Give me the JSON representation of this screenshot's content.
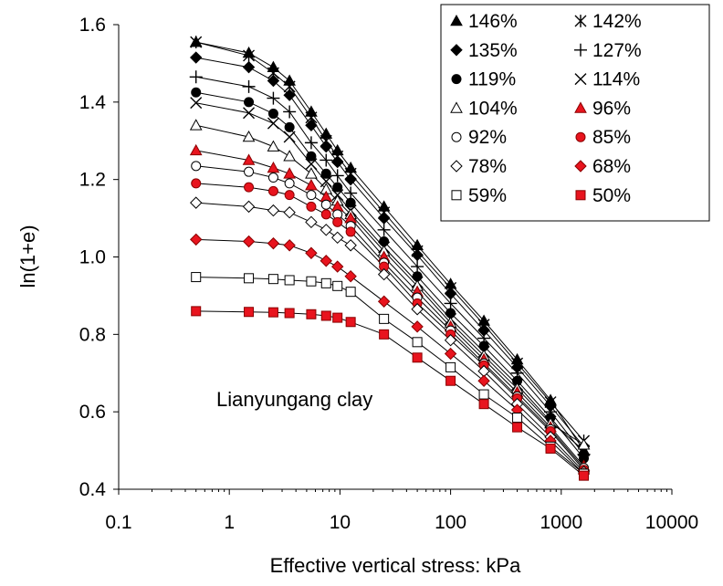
{
  "chart_data": {
    "type": "scatter",
    "xlabel": "Effective vertical stress: kPa",
    "ylabel": "ln(1+e)",
    "x_scale": "log",
    "xlim": [
      0.1,
      10000
    ],
    "ylim": [
      0.4,
      1.6
    ],
    "x_ticks": [
      0.1,
      1,
      10,
      100,
      1000,
      10000
    ],
    "x_tick_labels": [
      "0.1",
      "1",
      "10",
      "100",
      "1000",
      "10000"
    ],
    "y_ticks": [
      0.4,
      0.6,
      0.8,
      1.0,
      1.2,
      1.4,
      1.6
    ],
    "y_tick_labels": [
      "0.4",
      "0.6",
      "0.8",
      "1.0",
      "1.2",
      "1.4",
      "1.6"
    ],
    "grid": false,
    "legend_position": "top-right",
    "annotation": "Lianyungang clay",
    "x": [
      0.5,
      1.5,
      2.5,
      3.5,
      5.5,
      7.5,
      9.5,
      12.5,
      25,
      50,
      100,
      200,
      400,
      800,
      1600
    ],
    "series": [
      {
        "name": "146%",
        "marker": "triangle",
        "color": "#000000",
        "fill": "filled",
        "values": [
          1.555,
          1.527,
          1.49,
          1.455,
          1.375,
          1.318,
          1.275,
          1.23,
          1.13,
          1.03,
          0.93,
          0.835,
          0.735,
          0.63,
          0.5
        ]
      },
      {
        "name": "142%",
        "marker": "asterisk",
        "color": "#000000",
        "fill": "open",
        "values": [
          1.555,
          1.52,
          1.475,
          1.44,
          1.36,
          1.3,
          1.26,
          1.215,
          1.115,
          1.015,
          0.92,
          0.825,
          0.725,
          0.625,
          0.525
        ]
      },
      {
        "name": "135%",
        "marker": "diamond",
        "color": "#000000",
        "fill": "filled",
        "values": [
          1.515,
          1.49,
          1.455,
          1.418,
          1.34,
          1.285,
          1.245,
          1.2,
          1.1,
          1.005,
          0.905,
          0.81,
          0.715,
          0.615,
          0.51
        ]
      },
      {
        "name": "127%",
        "marker": "plus",
        "color": "#000000",
        "fill": "open",
        "values": [
          1.465,
          1.44,
          1.41,
          1.375,
          1.295,
          1.25,
          1.21,
          1.165,
          1.07,
          0.975,
          0.88,
          0.79,
          0.7,
          0.6,
          0.49
        ]
      },
      {
        "name": "119%",
        "marker": "circle",
        "color": "#000000",
        "fill": "filled",
        "values": [
          1.425,
          1.4,
          1.37,
          1.335,
          1.26,
          1.215,
          1.18,
          1.14,
          1.04,
          0.95,
          0.855,
          0.77,
          0.68,
          0.585,
          0.48
        ]
      },
      {
        "name": "114%",
        "marker": "cross",
        "color": "#000000",
        "fill": "open",
        "values": [
          1.398,
          1.372,
          1.345,
          1.31,
          1.24,
          1.195,
          1.16,
          1.12,
          1.025,
          0.935,
          0.84,
          0.755,
          0.67,
          0.575,
          0.5
        ]
      },
      {
        "name": "104%",
        "marker": "triangle",
        "color": "#000000",
        "fill": "open",
        "values": [
          1.34,
          1.31,
          1.285,
          1.26,
          1.215,
          1.175,
          1.145,
          1.11,
          1.015,
          0.925,
          0.83,
          0.745,
          0.66,
          0.57,
          0.515
        ]
      },
      {
        "name": "96%",
        "marker": "triangle",
        "color": "#e8141e",
        "fill": "filled",
        "values": [
          1.275,
          1.25,
          1.23,
          1.215,
          1.185,
          1.155,
          1.13,
          1.1,
          1.0,
          0.91,
          0.82,
          0.735,
          0.65,
          0.56,
          0.46
        ]
      },
      {
        "name": "92%",
        "marker": "circle",
        "color": "#000000",
        "fill": "open",
        "values": [
          1.235,
          1.22,
          1.205,
          1.19,
          1.16,
          1.135,
          1.11,
          1.08,
          0.985,
          0.895,
          0.81,
          0.725,
          0.64,
          0.555,
          0.455
        ]
      },
      {
        "name": "85%",
        "marker": "circle",
        "color": "#e8141e",
        "fill": "filled",
        "values": [
          1.19,
          1.18,
          1.17,
          1.16,
          1.13,
          1.11,
          1.09,
          1.065,
          0.975,
          0.88,
          0.8,
          0.72,
          0.635,
          0.55,
          0.45
        ]
      },
      {
        "name": "78%",
        "marker": "diamond",
        "color": "#000000",
        "fill": "open",
        "values": [
          1.14,
          1.13,
          1.12,
          1.115,
          1.09,
          1.07,
          1.05,
          1.03,
          0.955,
          0.865,
          0.785,
          0.705,
          0.62,
          0.535,
          0.445
        ]
      },
      {
        "name": "68%",
        "marker": "diamond",
        "color": "#e8141e",
        "fill": "filled",
        "values": [
          1.045,
          1.04,
          1.035,
          1.03,
          1.01,
          0.99,
          0.975,
          0.95,
          0.885,
          0.82,
          0.75,
          0.68,
          0.605,
          0.525,
          0.44
        ]
      },
      {
        "name": "59%",
        "marker": "square",
        "color": "#000000",
        "fill": "open",
        "values": [
          0.948,
          0.945,
          0.943,
          0.94,
          0.937,
          0.932,
          0.925,
          0.91,
          0.84,
          0.78,
          0.715,
          0.645,
          0.585,
          0.51,
          0.44
        ]
      },
      {
        "name": "50%",
        "marker": "square",
        "color": "#e8141e",
        "fill": "filled",
        "values": [
          0.86,
          0.858,
          0.857,
          0.855,
          0.852,
          0.848,
          0.843,
          0.832,
          0.8,
          0.74,
          0.68,
          0.62,
          0.56,
          0.505,
          0.435
        ]
      }
    ]
  }
}
